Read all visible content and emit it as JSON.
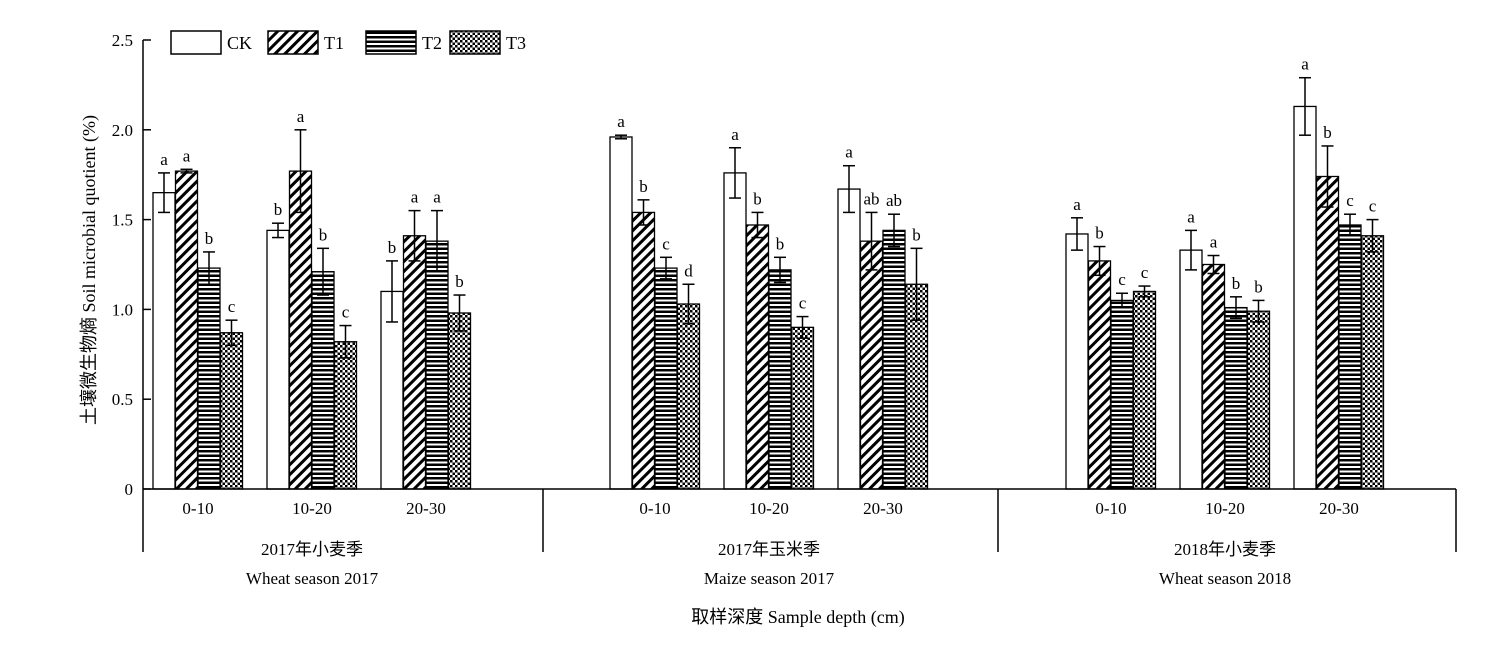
{
  "chart_data": {
    "type": "bar",
    "ylabel": "土壤微生物熵 Soil microbial quotient (%)",
    "xlabel": "取样深度 Sample depth (cm)",
    "ylim": [
      0,
      2.5
    ],
    "yticks": [
      0,
      0.5,
      1.0,
      1.5,
      2.0,
      2.5
    ],
    "ytick_labels": [
      "0",
      "0.5",
      "1.0",
      "1.5",
      "2.0",
      "2.5"
    ],
    "legend_position": "top-left",
    "series": [
      {
        "name": "CK",
        "pattern": "blank"
      },
      {
        "name": "T1",
        "pattern": "diagonal"
      },
      {
        "name": "T2",
        "pattern": "horizontal"
      },
      {
        "name": "T3",
        "pattern": "crosshatch"
      }
    ],
    "groups": [
      {
        "label_cn": "2017年小麦季",
        "label_en": "Wheat season 2017",
        "depths": [
          {
            "label": "0-10",
            "values": [
              1.65,
              1.77,
              1.23,
              0.87
            ],
            "errors": [
              0.11,
              0.01,
              0.09,
              0.07
            ],
            "letters": [
              "a",
              "a",
              "b",
              "c"
            ]
          },
          {
            "label": "10-20",
            "values": [
              1.44,
              1.77,
              1.21,
              0.82
            ],
            "errors": [
              0.04,
              0.23,
              0.13,
              0.09
            ],
            "letters": [
              "b",
              "a",
              "b",
              "c"
            ]
          },
          {
            "label": "20-30",
            "values": [
              1.1,
              1.41,
              1.38,
              0.98
            ],
            "errors": [
              0.17,
              0.14,
              0.17,
              0.1
            ],
            "letters": [
              "b",
              "a",
              "a",
              "b"
            ]
          }
        ]
      },
      {
        "label_cn": "2017年玉米季",
        "label_en": "Maize season 2017",
        "depths": [
          {
            "label": "0-10",
            "values": [
              1.96,
              1.54,
              1.23,
              1.03
            ],
            "errors": [
              0.01,
              0.07,
              0.06,
              0.11
            ],
            "letters": [
              "a",
              "b",
              "c",
              "d"
            ]
          },
          {
            "label": "10-20",
            "values": [
              1.76,
              1.47,
              1.22,
              0.9
            ],
            "errors": [
              0.14,
              0.07,
              0.07,
              0.06
            ],
            "letters": [
              "a",
              "b",
              "b",
              "c"
            ]
          },
          {
            "label": "20-30",
            "values": [
              1.67,
              1.38,
              1.44,
              1.14
            ],
            "errors": [
              0.13,
              0.16,
              0.09,
              0.2
            ],
            "letters": [
              "a",
              "ab",
              "ab",
              "b"
            ]
          }
        ]
      },
      {
        "label_cn": "2018年小麦季",
        "label_en": "Wheat season 2018",
        "depths": [
          {
            "label": "0-10",
            "values": [
              1.42,
              1.27,
              1.05,
              1.1
            ],
            "errors": [
              0.09,
              0.08,
              0.04,
              0.03
            ],
            "letters": [
              "a",
              "b",
              "c",
              "c"
            ]
          },
          {
            "label": "10-20",
            "values": [
              1.33,
              1.25,
              1.01,
              0.99
            ],
            "errors": [
              0.11,
              0.05,
              0.06,
              0.06
            ],
            "letters": [
              "a",
              "a",
              "b",
              "b"
            ]
          },
          {
            "label": "20-30",
            "values": [
              2.13,
              1.74,
              1.47,
              1.41
            ],
            "errors": [
              0.16,
              0.17,
              0.06,
              0.09
            ],
            "letters": [
              "a",
              "b",
              "c",
              "c"
            ]
          }
        ]
      }
    ]
  }
}
